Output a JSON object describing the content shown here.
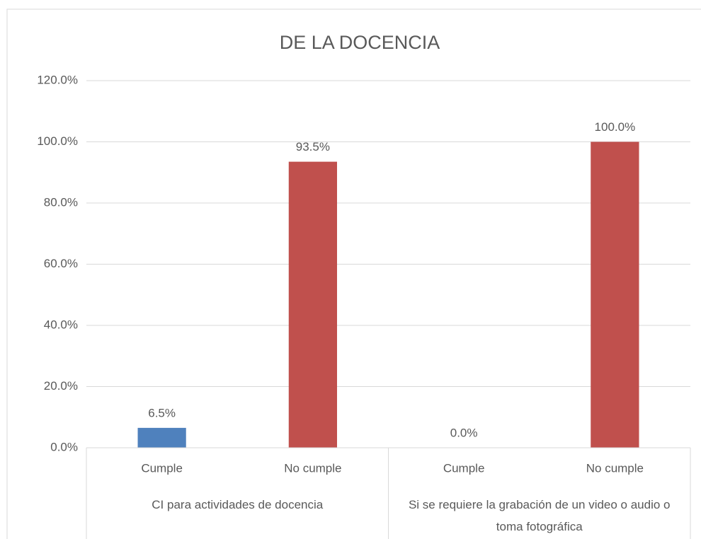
{
  "chart_data": {
    "type": "bar",
    "title": "DE LA DOCENCIA",
    "categories": [
      "Cumple",
      "No cumple",
      "Cumple",
      "No cumple"
    ],
    "groups": [
      {
        "name": "CI para actividades de docencia",
        "count": 2
      },
      {
        "name": "Si se requiere la grabación de un video o audio o toma fotográfica",
        "count": 2
      }
    ],
    "values": [
      6.5,
      93.5,
      0,
      100
    ],
    "value_labels": [
      "6.5%",
      "93.5%",
      "0.0%",
      "100.0%"
    ],
    "colors": [
      "#4f81bd",
      "#c0504d",
      "#4f81bd",
      "#c0504d"
    ],
    "ylim": [
      0,
      120
    ],
    "yticks": [
      {
        "value": 0,
        "label": "0.0%"
      },
      {
        "value": 20,
        "label": "20.0%"
      },
      {
        "value": 40,
        "label": "40.0%"
      },
      {
        "value": 60,
        "label": "60.0%"
      },
      {
        "value": 80,
        "label": "80.0%"
      },
      {
        "value": 100,
        "label": "100.0%"
      },
      {
        "value": 120,
        "label": "120.0%"
      }
    ],
    "grid": true
  }
}
